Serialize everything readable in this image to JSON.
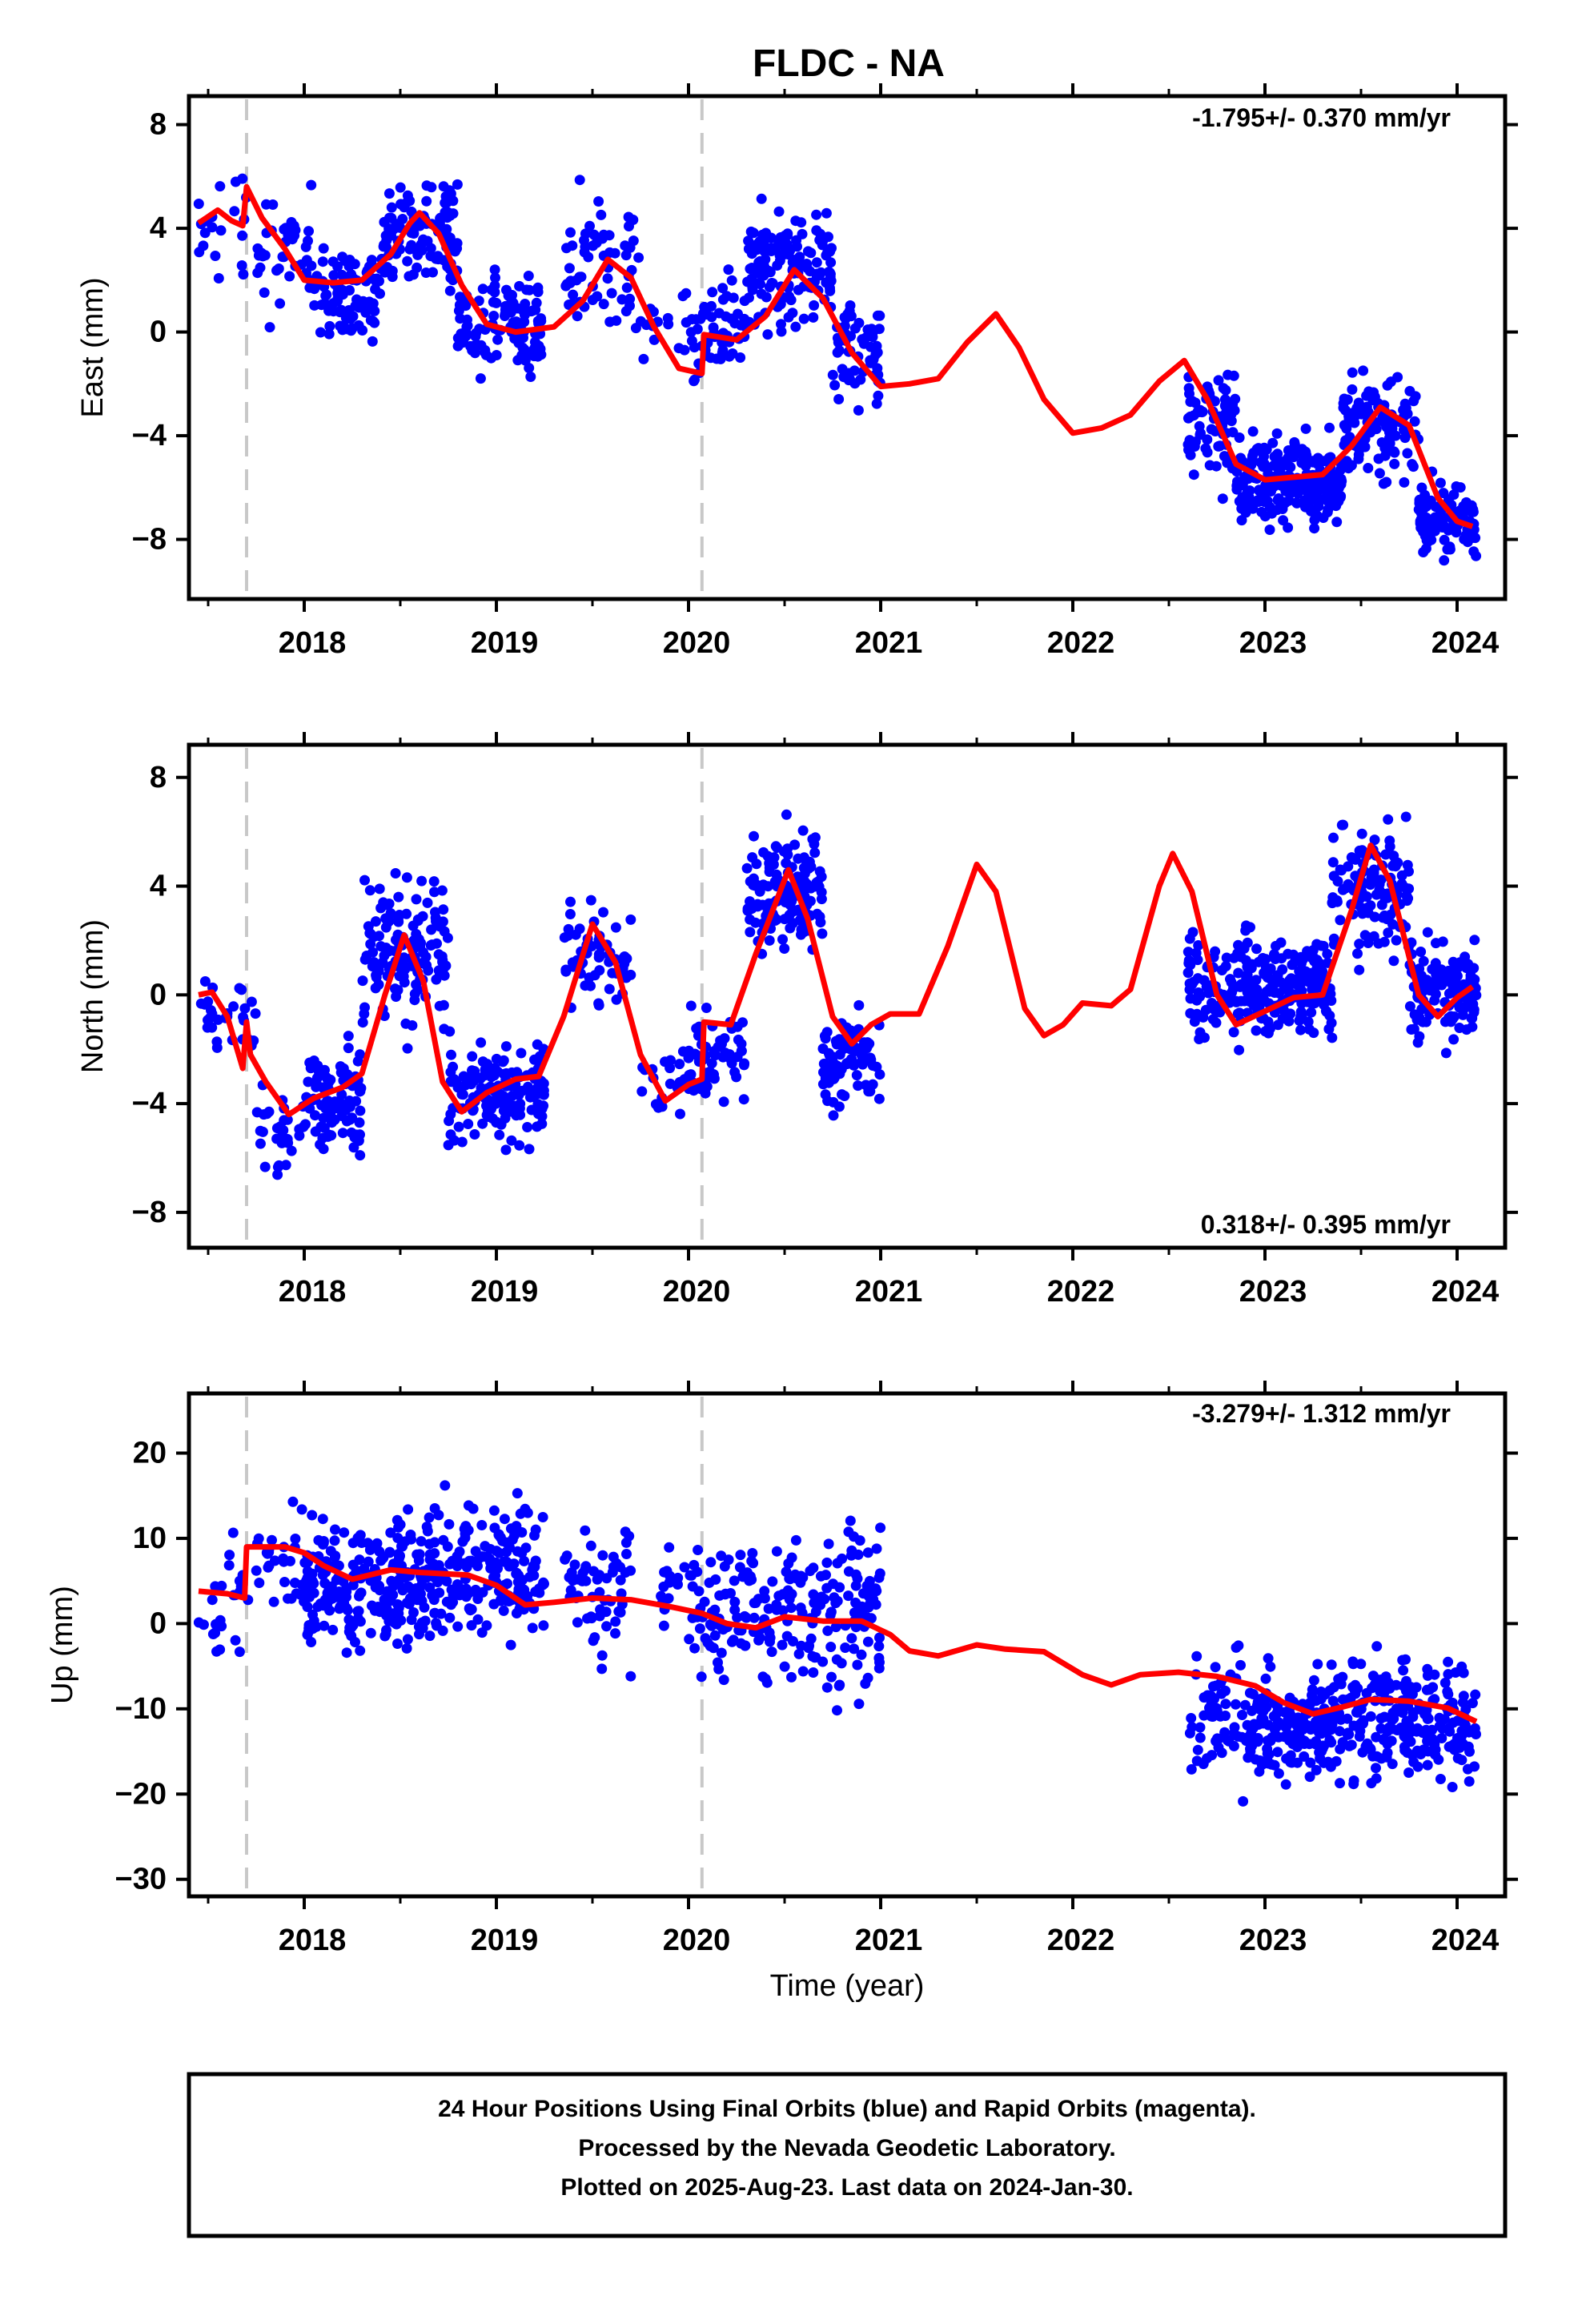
{
  "chart_data": {
    "type": "scatter",
    "title": "FLDC - NA",
    "xlabel": "Time (year)",
    "xlim": [
      2017.4,
      2024.25
    ],
    "x_ticks": [
      "2018",
      "2019",
      "2020",
      "2021",
      "2022",
      "2023",
      "2024"
    ],
    "step_lines": [
      2017.7,
      2020.07
    ],
    "series_colors": {
      "points": "#0000ff",
      "model": "#ff0000",
      "steps": "#c8c8c8"
    },
    "panels": [
      {
        "name": "east",
        "ylabel": "East (mm)",
        "ylim": [
          -10.3,
          9.1
        ],
        "y_ticks": [
          "8",
          "4",
          "0",
          "−4",
          "−8"
        ],
        "y_values": [
          8,
          4,
          0,
          -4,
          -8
        ],
        "rate_label": "-1.795+/- 0.370 mm/yr",
        "rate_position": "top-right",
        "model": [
          [
            2017.45,
            4.2
          ],
          [
            2017.55,
            4.7
          ],
          [
            2017.62,
            4.3
          ],
          [
            2017.68,
            4.1
          ],
          [
            2017.7,
            5.6
          ],
          [
            2017.78,
            4.4
          ],
          [
            2017.9,
            3.2
          ],
          [
            2018.0,
            2.0
          ],
          [
            2018.15,
            1.9
          ],
          [
            2018.3,
            2.0
          ],
          [
            2018.45,
            3.0
          ],
          [
            2018.55,
            4.2
          ],
          [
            2018.6,
            4.6
          ],
          [
            2018.7,
            3.8
          ],
          [
            2018.82,
            1.8
          ],
          [
            2018.95,
            0.3
          ],
          [
            2019.1,
            0.0
          ],
          [
            2019.3,
            0.2
          ],
          [
            2019.45,
            1.2
          ],
          [
            2019.58,
            2.8
          ],
          [
            2019.7,
            2.1
          ],
          [
            2019.82,
            0.2
          ],
          [
            2019.95,
            -1.4
          ],
          [
            2020.07,
            -1.6
          ],
          [
            2020.08,
            -0.1
          ],
          [
            2020.25,
            -0.3
          ],
          [
            2020.4,
            0.6
          ],
          [
            2020.55,
            2.4
          ],
          [
            2020.7,
            1.3
          ],
          [
            2020.85,
            -0.8
          ],
          [
            2021.0,
            -2.1
          ],
          [
            2021.15,
            -2.0
          ],
          [
            2021.3,
            -1.8
          ],
          [
            2021.45,
            -0.4
          ],
          [
            2021.6,
            0.7
          ],
          [
            2021.72,
            -0.6
          ],
          [
            2021.85,
            -2.6
          ],
          [
            2022.0,
            -3.9
          ],
          [
            2022.15,
            -3.7
          ],
          [
            2022.3,
            -3.2
          ],
          [
            2022.45,
            -1.9
          ],
          [
            2022.58,
            -1.1
          ],
          [
            2022.7,
            -2.6
          ],
          [
            2022.85,
            -5.1
          ],
          [
            2023.0,
            -5.7
          ],
          [
            2023.15,
            -5.6
          ],
          [
            2023.3,
            -5.5
          ],
          [
            2023.45,
            -4.4
          ],
          [
            2023.6,
            -2.9
          ],
          [
            2023.75,
            -3.6
          ],
          [
            2023.9,
            -6.4
          ],
          [
            2024.0,
            -7.3
          ],
          [
            2024.08,
            -7.5
          ]
        ],
        "clusters": [
          [
            2017.45,
            2017.7,
            4.0,
            1.6,
            20
          ],
          [
            2017.75,
            2018.05,
            3.0,
            1.5,
            40
          ],
          [
            2018.05,
            2018.4,
            1.5,
            1.6,
            90
          ],
          [
            2018.4,
            2018.8,
            3.8,
            1.6,
            110
          ],
          [
            2018.8,
            2019.25,
            0.3,
            1.5,
            110
          ],
          [
            2019.35,
            2019.75,
            2.6,
            2.0,
            60
          ],
          [
            2019.75,
            2020.0,
            0.2,
            1.6,
            15
          ],
          [
            2020.0,
            2020.3,
            0.3,
            1.5,
            60
          ],
          [
            2020.3,
            2020.75,
            2.4,
            1.8,
            140
          ],
          [
            2020.75,
            2021.0,
            -0.8,
            1.6,
            60
          ],
          [
            2022.6,
            2022.85,
            -3.4,
            1.7,
            70
          ],
          [
            2022.85,
            2023.4,
            -5.8,
            1.3,
            220
          ],
          [
            2023.4,
            2023.8,
            -3.8,
            1.5,
            120
          ],
          [
            2023.8,
            2024.1,
            -7.2,
            1.1,
            100
          ]
        ]
      },
      {
        "name": "north",
        "ylabel": "North (mm)",
        "ylim": [
          -9.3,
          9.2
        ],
        "y_ticks": [
          "8",
          "4",
          "0",
          "−4",
          "−8"
        ],
        "y_values": [
          8,
          4,
          0,
          -4,
          -8
        ],
        "rate_label": "0.318+/- 0.395 mm/yr",
        "rate_position": "bottom-right",
        "model": [
          [
            2017.45,
            0.0
          ],
          [
            2017.52,
            0.1
          ],
          [
            2017.6,
            -0.8
          ],
          [
            2017.68,
            -2.7
          ],
          [
            2017.7,
            -1.0
          ],
          [
            2017.72,
            -2.2
          ],
          [
            2017.8,
            -3.2
          ],
          [
            2017.92,
            -4.4
          ],
          [
            2018.05,
            -3.8
          ],
          [
            2018.2,
            -3.4
          ],
          [
            2018.3,
            -2.9
          ],
          [
            2018.42,
            0.0
          ],
          [
            2018.52,
            2.2
          ],
          [
            2018.62,
            0.5
          ],
          [
            2018.72,
            -3.2
          ],
          [
            2018.82,
            -4.3
          ],
          [
            2018.95,
            -3.6
          ],
          [
            2019.1,
            -3.1
          ],
          [
            2019.22,
            -3.0
          ],
          [
            2019.35,
            -0.8
          ],
          [
            2019.5,
            2.6
          ],
          [
            2019.62,
            1.2
          ],
          [
            2019.75,
            -2.2
          ],
          [
            2019.88,
            -3.9
          ],
          [
            2020.0,
            -3.3
          ],
          [
            2020.07,
            -3.1
          ],
          [
            2020.08,
            -1.0
          ],
          [
            2020.22,
            -1.1
          ],
          [
            2020.35,
            1.5
          ],
          [
            2020.52,
            4.6
          ],
          [
            2020.62,
            2.8
          ],
          [
            2020.75,
            -0.8
          ],
          [
            2020.85,
            -1.8
          ],
          [
            2020.95,
            -1.1
          ],
          [
            2021.05,
            -0.7
          ],
          [
            2021.2,
            -0.7
          ],
          [
            2021.35,
            1.8
          ],
          [
            2021.5,
            4.8
          ],
          [
            2021.6,
            3.8
          ],
          [
            2021.75,
            -0.5
          ],
          [
            2021.85,
            -1.5
          ],
          [
            2021.95,
            -1.1
          ],
          [
            2022.05,
            -0.3
          ],
          [
            2022.2,
            -0.4
          ],
          [
            2022.3,
            0.2
          ],
          [
            2022.45,
            4.0
          ],
          [
            2022.52,
            5.2
          ],
          [
            2022.62,
            3.8
          ],
          [
            2022.75,
            0.0
          ],
          [
            2022.85,
            -1.1
          ],
          [
            2023.0,
            -0.6
          ],
          [
            2023.15,
            -0.1
          ],
          [
            2023.3,
            0.0
          ],
          [
            2023.45,
            3.1
          ],
          [
            2023.55,
            5.5
          ],
          [
            2023.65,
            4.2
          ],
          [
            2023.8,
            0.0
          ],
          [
            2023.9,
            -0.8
          ],
          [
            2024.0,
            -0.1
          ],
          [
            2024.08,
            0.3
          ]
        ],
        "clusters": [
          [
            2017.45,
            2017.75,
            -0.5,
            1.6,
            30
          ],
          [
            2017.75,
            2018.0,
            -5.0,
            1.4,
            30
          ],
          [
            2018.0,
            2018.3,
            -3.8,
            1.5,
            90
          ],
          [
            2018.3,
            2018.75,
            1.5,
            2.2,
            140
          ],
          [
            2018.75,
            2019.25,
            -3.8,
            1.5,
            150
          ],
          [
            2019.35,
            2019.7,
            1.5,
            1.8,
            60
          ],
          [
            2019.75,
            2020.0,
            -3.2,
            1.2,
            20
          ],
          [
            2020.0,
            2020.3,
            -2.5,
            1.4,
            60
          ],
          [
            2020.3,
            2020.7,
            3.8,
            1.7,
            140
          ],
          [
            2020.7,
            2021.0,
            -2.5,
            1.2,
            90
          ],
          [
            2022.6,
            2022.9,
            0.5,
            1.7,
            80
          ],
          [
            2022.9,
            2023.35,
            0.3,
            1.4,
            180
          ],
          [
            2023.35,
            2023.75,
            3.8,
            2.0,
            120
          ],
          [
            2023.75,
            2024.1,
            0.2,
            1.4,
            120
          ]
        ]
      },
      {
        "name": "up",
        "ylabel": "Up (mm)",
        "ylim": [
          -32,
          27
        ],
        "y_ticks": [
          "20",
          "10",
          "0",
          "−10",
          "−20",
          "−30"
        ],
        "y_values": [
          20,
          10,
          0,
          -10,
          -20,
          -30
        ],
        "rate_label": "-3.279+/- 1.312 mm/yr",
        "rate_position": "top-right",
        "model": [
          [
            2017.45,
            3.8
          ],
          [
            2017.6,
            3.5
          ],
          [
            2017.69,
            3.0
          ],
          [
            2017.7,
            9.0
          ],
          [
            2017.9,
            9.0
          ],
          [
            2018.0,
            8.3
          ],
          [
            2018.1,
            6.8
          ],
          [
            2018.25,
            5.2
          ],
          [
            2018.45,
            6.3
          ],
          [
            2018.6,
            6.0
          ],
          [
            2018.85,
            5.7
          ],
          [
            2019.0,
            4.5
          ],
          [
            2019.15,
            2.2
          ],
          [
            2019.3,
            2.5
          ],
          [
            2019.5,
            3.0
          ],
          [
            2019.7,
            2.8
          ],
          [
            2019.9,
            2.0
          ],
          [
            2020.07,
            1.2
          ],
          [
            2020.2,
            0.0
          ],
          [
            2020.35,
            -0.5
          ],
          [
            2020.5,
            0.8
          ],
          [
            2020.7,
            0.3
          ],
          [
            2020.9,
            0.3
          ],
          [
            2021.05,
            -1.3
          ],
          [
            2021.15,
            -3.2
          ],
          [
            2021.3,
            -3.8
          ],
          [
            2021.5,
            -2.5
          ],
          [
            2021.65,
            -3.0
          ],
          [
            2021.85,
            -3.3
          ],
          [
            2022.05,
            -6.0
          ],
          [
            2022.2,
            -7.2
          ],
          [
            2022.35,
            -6.0
          ],
          [
            2022.55,
            -5.7
          ],
          [
            2022.75,
            -6.2
          ],
          [
            2022.95,
            -7.3
          ],
          [
            2023.1,
            -9.3
          ],
          [
            2023.25,
            -10.6
          ],
          [
            2023.4,
            -9.8
          ],
          [
            2023.55,
            -8.9
          ],
          [
            2023.75,
            -9.1
          ],
          [
            2023.95,
            -9.9
          ],
          [
            2024.1,
            -11.5
          ]
        ],
        "clusters": [
          [
            2017.45,
            2017.75,
            3.0,
            6.0,
            25
          ],
          [
            2017.75,
            2018.0,
            7.0,
            5.0,
            30
          ],
          [
            2018.0,
            2018.5,
            4.5,
            6.0,
            170
          ],
          [
            2018.5,
            2018.75,
            5.0,
            7.0,
            90
          ],
          [
            2018.75,
            2019.25,
            6.0,
            6.5,
            150
          ],
          [
            2019.35,
            2019.7,
            4.0,
            6.5,
            60
          ],
          [
            2019.85,
            2020.05,
            3.0,
            6.0,
            25
          ],
          [
            2020.05,
            2020.5,
            1.0,
            6.0,
            90
          ],
          [
            2020.5,
            2021.0,
            2.0,
            8.0,
            130
          ],
          [
            2022.6,
            2022.9,
            -11.0,
            6.0,
            60
          ],
          [
            2022.9,
            2023.35,
            -12.0,
            5.0,
            170
          ],
          [
            2023.35,
            2023.75,
            -10.5,
            6.0,
            120
          ],
          [
            2023.75,
            2024.1,
            -12.0,
            5.0,
            110
          ]
        ]
      }
    ]
  },
  "footer": {
    "line1": "24 Hour Positions Using Final Orbits (blue) and Rapid Orbits (magenta).",
    "line2": "Processed by the Nevada Geodetic Laboratory.",
    "line3": "Plotted on 2025-Aug-23. Last data on 2024-Jan-30."
  }
}
